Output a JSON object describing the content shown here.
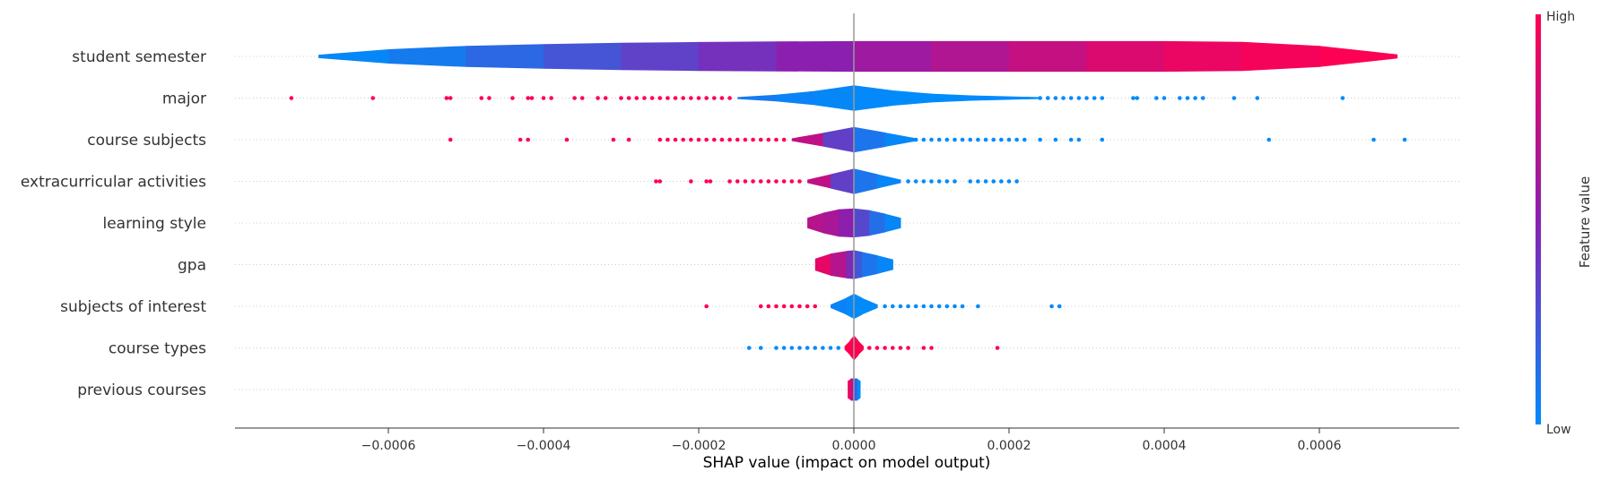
{
  "chart_data": {
    "type": "scatter",
    "subtype": "shap-violin-summary",
    "xlabel": "SHAP value (impact on model output)",
    "xlim": [
      -0.00079,
      0.00078
    ],
    "xticks": [
      -0.0006,
      -0.0004,
      -0.0002,
      0.0,
      0.0002,
      0.0004,
      0.0006
    ],
    "xtick_labels": [
      "−0.0006",
      "−0.0004",
      "−0.0002",
      "0.0000",
      "0.0002",
      "0.0004",
      "0.0006"
    ],
    "colorbar": {
      "title": "Feature value",
      "high_label": "High",
      "low_label": "Low",
      "low_color": "#008bfb",
      "mid_color": "#8b1fb0",
      "high_color": "#ff0051"
    },
    "grid": "dotted horizontal row lines",
    "features": [
      {
        "name": "student semester",
        "halfwidth": 0.85,
        "violin_x": [
          -0.00069,
          -0.0006,
          -0.0005,
          -0.0004,
          -0.0003,
          -0.0002,
          -0.0001,
          0.0,
          0.0001,
          0.0002,
          0.0003,
          0.0004,
          0.0005,
          0.0006,
          0.0007
        ],
        "violin_w": [
          0.1,
          0.42,
          0.62,
          0.72,
          0.8,
          0.85,
          0.88,
          0.9,
          0.9,
          0.9,
          0.9,
          0.9,
          0.86,
          0.62,
          0.12
        ],
        "violin_c": [
          0.0,
          0.04,
          0.12,
          0.2,
          0.3,
          0.38,
          0.46,
          0.54,
          0.62,
          0.7,
          0.8,
          0.88,
          0.94,
          0.97,
          1.0
        ],
        "points_high": [],
        "points_low": []
      },
      {
        "name": "major",
        "halfwidth": 0.75,
        "violin_x": [
          -0.00015,
          -0.0001,
          -5e-05,
          0.0,
          5e-05,
          0.0001,
          0.00015,
          0.0002,
          0.00024
        ],
        "violin_w": [
          0.06,
          0.2,
          0.42,
          0.75,
          0.45,
          0.26,
          0.16,
          0.1,
          0.05
        ],
        "violin_c": [
          0.1,
          0.05,
          0.02,
          0.02,
          0.0,
          0.0,
          0.0,
          0.0,
          0.0
        ],
        "points_high": [
          -0.000725,
          -0.00062,
          -0.000525,
          -0.00052,
          -0.00048,
          -0.00047,
          -0.00044,
          -0.00042,
          -0.000415,
          -0.0004,
          -0.00039,
          -0.00036,
          -0.00035,
          -0.00033,
          -0.00032,
          -0.0003,
          -0.00029,
          -0.00028,
          -0.00027,
          -0.00026,
          -0.00025,
          -0.00024,
          -0.00023,
          -0.00022,
          -0.00021,
          -0.0002,
          -0.00019,
          -0.00018,
          -0.00017,
          -0.00016
        ],
        "points_low": [
          0.00024,
          0.00025,
          0.00026,
          0.00027,
          0.00028,
          0.00029,
          0.0003,
          0.00031,
          0.00032,
          0.00036,
          0.000365,
          0.00039,
          0.0004,
          0.00042,
          0.00043,
          0.00044,
          0.00045,
          0.00049,
          0.00052,
          0.00063
        ]
      },
      {
        "name": "course subjects",
        "halfwidth": 0.75,
        "violin_x": [
          -8e-05,
          -4e-05,
          0.0,
          4e-05,
          8e-05
        ],
        "violin_w": [
          0.08,
          0.4,
          0.75,
          0.42,
          0.08
        ],
        "violin_c": [
          0.9,
          0.55,
          0.15,
          0.05,
          0.0
        ],
        "points_high": [
          -0.00052,
          -0.00043,
          -0.00042,
          -0.00037,
          -0.00031,
          -0.00029,
          -0.00025,
          -0.00024,
          -0.00023,
          -0.00022,
          -0.00021,
          -0.0002,
          -0.00019,
          -0.00018,
          -0.00017,
          -0.00016,
          -0.00015,
          -0.00014,
          -0.00013,
          -0.00012,
          -0.00011,
          -0.0001,
          -9e-05
        ],
        "points_low": [
          6e-05,
          7e-05,
          8e-05,
          9e-05,
          0.0001,
          0.00011,
          0.00012,
          0.00013,
          0.00014,
          0.00015,
          0.00016,
          0.00017,
          0.00018,
          0.00019,
          0.0002,
          0.00021,
          0.00022,
          0.00024,
          0.00026,
          0.00028,
          0.00029,
          0.00032,
          0.000535,
          0.00067,
          0.00071
        ]
      },
      {
        "name": "extracurricular activities",
        "halfwidth": 0.75,
        "violin_x": [
          -6e-05,
          -3e-05,
          0.0,
          3e-05,
          6e-05
        ],
        "violin_w": [
          0.1,
          0.42,
          0.75,
          0.42,
          0.1
        ],
        "violin_c": [
          0.9,
          0.55,
          0.15,
          0.05,
          0.0
        ],
        "points_high": [
          -0.000255,
          -0.00025,
          -0.00021,
          -0.00019,
          -0.000185,
          -0.00016,
          -0.00015,
          -0.00014,
          -0.00013,
          -0.00012,
          -0.00011,
          -0.0001,
          -9e-05,
          -8e-05,
          -7e-05
        ],
        "points_low": [
          7e-05,
          8e-05,
          9e-05,
          0.0001,
          0.00011,
          0.00012,
          0.00013,
          0.00015,
          0.00016,
          0.00017,
          0.00018,
          0.00019,
          0.0002,
          0.00021
        ]
      },
      {
        "name": "learning style",
        "halfwidth": 0.5,
        "violin_x": [
          -6e-05,
          -4e-05,
          -2e-05,
          0.0,
          2e-05,
          4e-05,
          6e-05
        ],
        "violin_w": [
          0.3,
          0.6,
          0.8,
          0.85,
          0.75,
          0.55,
          0.3
        ],
        "violin_c": [
          0.72,
          0.66,
          0.6,
          0.42,
          0.2,
          0.06,
          0.0
        ],
        "points_high": [],
        "points_low": []
      },
      {
        "name": "gpa",
        "halfwidth": 0.5,
        "violin_x": [
          -5e-05,
          -3e-05,
          -1e-05,
          0.0,
          1e-05,
          3e-05,
          5e-05
        ],
        "violin_w": [
          0.35,
          0.65,
          0.8,
          0.85,
          0.75,
          0.55,
          0.3
        ],
        "violin_c": [
          0.95,
          0.82,
          0.55,
          0.35,
          0.15,
          0.05,
          0.0
        ],
        "points_high": [],
        "points_low": []
      },
      {
        "name": "subjects of interest",
        "halfwidth": 0.6,
        "violin_x": [
          -3e-05,
          -1e-05,
          0.0,
          1e-05,
          3e-05
        ],
        "violin_w": [
          0.1,
          0.5,
          0.75,
          0.5,
          0.1
        ],
        "violin_c": [
          0.05,
          0.02,
          0.0,
          0.0,
          0.0
        ],
        "points_high": [
          -0.00019,
          -0.00012,
          -0.00011,
          -0.0001,
          -9e-05,
          -8e-05,
          -7e-05,
          -6e-05,
          -5e-05
        ],
        "points_low": [
          4e-05,
          5e-05,
          6e-05,
          7e-05,
          8e-05,
          9e-05,
          0.0001,
          0.00011,
          0.00012,
          0.00013,
          0.00014,
          0.00016,
          0.000255,
          0.000265
        ]
      },
      {
        "name": "course types",
        "halfwidth": 0.6,
        "violin_x": [
          -1.2e-05,
          -5e-06,
          0.0,
          5e-06,
          1.2e-05
        ],
        "violin_w": [
          0.1,
          0.45,
          0.75,
          0.45,
          0.1
        ],
        "violin_c": [
          1.0,
          1.0,
          1.0,
          1.0,
          1.0
        ],
        "points_high": [
          2e-05,
          3e-05,
          4e-05,
          5e-05,
          6e-05,
          7e-05,
          9e-05,
          0.0001,
          0.000185
        ],
        "points_low": [
          -0.000135,
          -0.00012,
          -0.0001,
          -9e-05,
          -8e-05,
          -7e-05,
          -6e-05,
          -5e-05,
          -4e-05,
          -3e-05,
          -2e-05
        ]
      },
      {
        "name": "previous courses",
        "halfwidth": 0.35,
        "violin_x": [
          -8e-06,
          -4e-06,
          0.0,
          4e-06,
          8e-06
        ],
        "violin_w": [
          0.5,
          0.65,
          0.65,
          0.65,
          0.5
        ],
        "violin_c": [
          1.0,
          0.9,
          0.4,
          0.0,
          0.0
        ],
        "points_high": [],
        "points_low": []
      }
    ]
  }
}
